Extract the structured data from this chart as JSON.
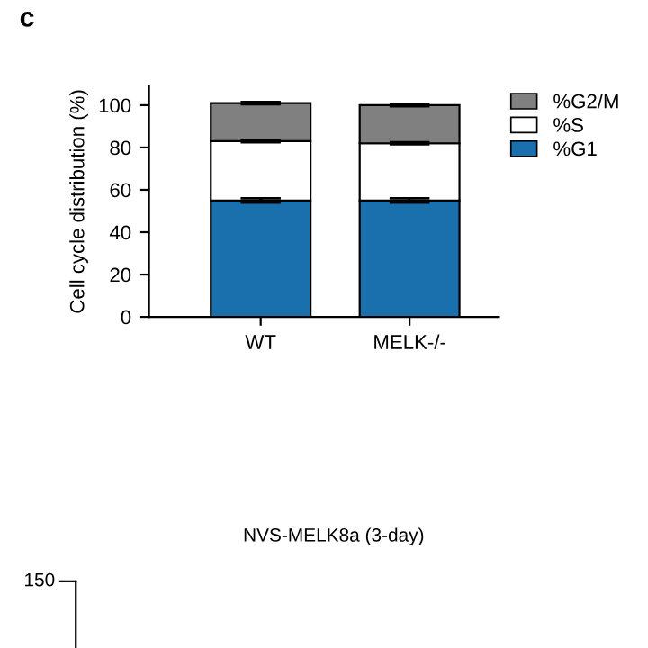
{
  "chart_data": [
    {
      "type": "bar",
      "stacked": true,
      "ylabel": "Cell cycle distribution (%)",
      "categories": [
        "WT",
        "MELK-/-"
      ],
      "ylim": [
        0,
        109
      ],
      "yticks": [
        0,
        20,
        40,
        60,
        80,
        100
      ],
      "legend": "top right",
      "grid": false,
      "annotations": [
        "c"
      ],
      "series": [
        {
          "name": "%G1",
          "color": "#1a6fad",
          "values": [
            55,
            55
          ],
          "errors": [
            1,
            1
          ]
        },
        {
          "name": "%S",
          "color": "#ffffff",
          "values": [
            28,
            27
          ],
          "errors": [
            0.5,
            0.5
          ]
        },
        {
          "name": "%G2/M",
          "color": "#808080",
          "values": [
            18,
            18
          ],
          "errors": [
            0.5,
            0.5
          ]
        }
      ]
    },
    {
      "type": "other",
      "title": "NVS-MELK8a (3-day)",
      "annotations": [
        "150"
      ]
    }
  ]
}
